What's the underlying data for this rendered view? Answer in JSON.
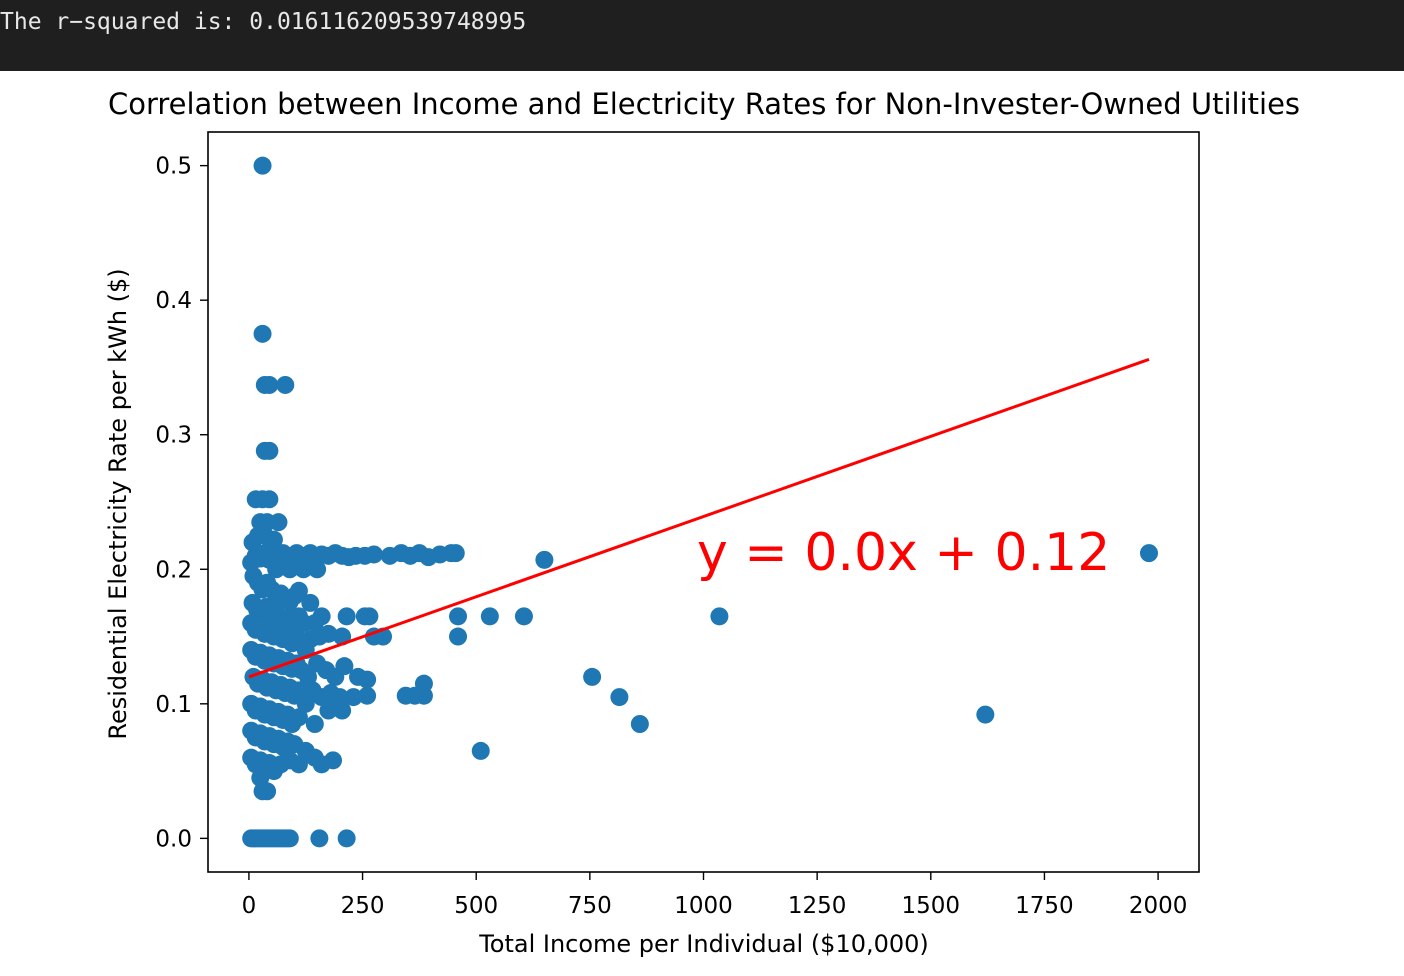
{
  "console": {
    "output": "The r−squared is: 0.016116209539748995"
  },
  "colors": {
    "points": "#1f77b4",
    "regression": "#ff0000",
    "console_bg": "#1f1f1f"
  },
  "chart_data": {
    "type": "scatter",
    "title": "Correlation between Income and Electricity Rates for Non-Invester-Owned Utilities",
    "xlabel": "Total Income per Individual ($10,000)",
    "ylabel": "Residential Electricity Rate per kWh ($)",
    "xlim": [
      -90,
      2090
    ],
    "ylim": [
      -0.025,
      0.525
    ],
    "xticks": [
      0,
      250,
      500,
      750,
      1000,
      1250,
      1500,
      1750,
      2000
    ],
    "yticks": [
      0.0,
      0.1,
      0.2,
      0.3,
      0.4,
      0.5
    ],
    "xtick_labels": [
      "0",
      "250",
      "500",
      "750",
      "1000",
      "1250",
      "1500",
      "1750",
      "2000"
    ],
    "ytick_labels": [
      "0.0",
      "0.1",
      "0.2",
      "0.3",
      "0.4",
      "0.5"
    ],
    "grid": false,
    "annotation": "y = 0.0x + 0.12",
    "regression_line": {
      "x": [
        0,
        1980
      ],
      "y": [
        0.12,
        0.356
      ]
    },
    "points": [
      [
        30,
        0.5
      ],
      [
        30,
        0.375
      ],
      [
        35,
        0.337
      ],
      [
        45,
        0.337
      ],
      [
        80,
        0.337
      ],
      [
        35,
        0.288
      ],
      [
        45,
        0.288
      ],
      [
        15,
        0.252
      ],
      [
        30,
        0.252
      ],
      [
        45,
        0.252
      ],
      [
        25,
        0.235
      ],
      [
        40,
        0.235
      ],
      [
        65,
        0.235
      ],
      [
        8,
        0.22
      ],
      [
        20,
        0.225
      ],
      [
        35,
        0.225
      ],
      [
        55,
        0.222
      ],
      [
        5,
        0.205
      ],
      [
        15,
        0.21
      ],
      [
        25,
        0.208
      ],
      [
        35,
        0.212
      ],
      [
        45,
        0.207
      ],
      [
        55,
        0.21
      ],
      [
        65,
        0.208
      ],
      [
        75,
        0.212
      ],
      [
        85,
        0.207
      ],
      [
        95,
        0.21
      ],
      [
        105,
        0.212
      ],
      [
        115,
        0.208
      ],
      [
        125,
        0.21
      ],
      [
        135,
        0.212
      ],
      [
        145,
        0.208
      ],
      [
        160,
        0.211
      ],
      [
        175,
        0.21
      ],
      [
        190,
        0.212
      ],
      [
        205,
        0.21
      ],
      [
        220,
        0.209
      ],
      [
        235,
        0.21
      ],
      [
        255,
        0.21
      ],
      [
        275,
        0.211
      ],
      [
        310,
        0.21
      ],
      [
        335,
        0.212
      ],
      [
        355,
        0.21
      ],
      [
        375,
        0.212
      ],
      [
        395,
        0.209
      ],
      [
        420,
        0.211
      ],
      [
        445,
        0.212
      ],
      [
        455,
        0.212
      ],
      [
        650,
        0.207
      ],
      [
        1980,
        0.212
      ],
      [
        60,
        0.2
      ],
      [
        90,
        0.2
      ],
      [
        120,
        0.2
      ],
      [
        150,
        0.2
      ],
      [
        10,
        0.195
      ],
      [
        20,
        0.19
      ],
      [
        30,
        0.185
      ],
      [
        40,
        0.19
      ],
      [
        50,
        0.185
      ],
      [
        60,
        0.18
      ],
      [
        70,
        0.182
      ],
      [
        80,
        0.178
      ],
      [
        90,
        0.176
      ],
      [
        100,
        0.18
      ],
      [
        110,
        0.184
      ],
      [
        8,
        0.175
      ],
      [
        18,
        0.17
      ],
      [
        28,
        0.168
      ],
      [
        38,
        0.172
      ],
      [
        48,
        0.166
      ],
      [
        58,
        0.17
      ],
      [
        68,
        0.165
      ],
      [
        78,
        0.16
      ],
      [
        88,
        0.164
      ],
      [
        98,
        0.162
      ],
      [
        110,
        0.165
      ],
      [
        120,
        0.16
      ],
      [
        135,
        0.175
      ],
      [
        5,
        0.16
      ],
      [
        15,
        0.155
      ],
      [
        25,
        0.158
      ],
      [
        35,
        0.152
      ],
      [
        45,
        0.156
      ],
      [
        55,
        0.15
      ],
      [
        65,
        0.154
      ],
      [
        75,
        0.148
      ],
      [
        85,
        0.152
      ],
      [
        95,
        0.145
      ],
      [
        105,
        0.15
      ],
      [
        115,
        0.146
      ],
      [
        125,
        0.14
      ],
      [
        135,
        0.148
      ],
      [
        160,
        0.165
      ],
      [
        215,
        0.165
      ],
      [
        255,
        0.165
      ],
      [
        265,
        0.165
      ],
      [
        460,
        0.165
      ],
      [
        530,
        0.165
      ],
      [
        605,
        0.165
      ],
      [
        1035,
        0.165
      ],
      [
        145,
        0.16
      ],
      [
        155,
        0.15
      ],
      [
        175,
        0.152
      ],
      [
        205,
        0.15
      ],
      [
        275,
        0.15
      ],
      [
        295,
        0.15
      ],
      [
        460,
        0.15
      ],
      [
        5,
        0.14
      ],
      [
        15,
        0.135
      ],
      [
        25,
        0.138
      ],
      [
        35,
        0.132
      ],
      [
        45,
        0.136
      ],
      [
        55,
        0.13
      ],
      [
        65,
        0.134
      ],
      [
        75,
        0.128
      ],
      [
        85,
        0.132
      ],
      [
        95,
        0.126
      ],
      [
        105,
        0.13
      ],
      [
        115,
        0.125
      ],
      [
        130,
        0.12
      ],
      [
        150,
        0.13
      ],
      [
        170,
        0.125
      ],
      [
        190,
        0.12
      ],
      [
        210,
        0.128
      ],
      [
        240,
        0.12
      ],
      [
        260,
        0.118
      ],
      [
        10,
        0.12
      ],
      [
        20,
        0.115
      ],
      [
        30,
        0.118
      ],
      [
        40,
        0.112
      ],
      [
        50,
        0.116
      ],
      [
        60,
        0.11
      ],
      [
        70,
        0.114
      ],
      [
        80,
        0.108
      ],
      [
        90,
        0.112
      ],
      [
        100,
        0.106
      ],
      [
        110,
        0.11
      ],
      [
        120,
        0.105
      ],
      [
        140,
        0.11
      ],
      [
        160,
        0.105
      ],
      [
        180,
        0.108
      ],
      [
        200,
        0.105
      ],
      [
        230,
        0.105
      ],
      [
        260,
        0.106
      ],
      [
        345,
        0.106
      ],
      [
        365,
        0.106
      ],
      [
        385,
        0.106
      ],
      [
        385,
        0.115
      ],
      [
        755,
        0.12
      ],
      [
        815,
        0.105
      ],
      [
        860,
        0.085
      ],
      [
        1620,
        0.092
      ],
      [
        5,
        0.1
      ],
      [
        15,
        0.095
      ],
      [
        25,
        0.098
      ],
      [
        35,
        0.092
      ],
      [
        45,
        0.096
      ],
      [
        55,
        0.09
      ],
      [
        65,
        0.094
      ],
      [
        75,
        0.088
      ],
      [
        85,
        0.092
      ],
      [
        95,
        0.085
      ],
      [
        110,
        0.09
      ],
      [
        125,
        0.1
      ],
      [
        145,
        0.085
      ],
      [
        175,
        0.095
      ],
      [
        195,
        0.1
      ],
      [
        205,
        0.095
      ],
      [
        5,
        0.08
      ],
      [
        15,
        0.075
      ],
      [
        25,
        0.078
      ],
      [
        35,
        0.072
      ],
      [
        45,
        0.076
      ],
      [
        55,
        0.07
      ],
      [
        65,
        0.074
      ],
      [
        75,
        0.068
      ],
      [
        85,
        0.072
      ],
      [
        100,
        0.07
      ],
      [
        5,
        0.06
      ],
      [
        15,
        0.055
      ],
      [
        25,
        0.058
      ],
      [
        35,
        0.052
      ],
      [
        45,
        0.056
      ],
      [
        55,
        0.05
      ],
      [
        70,
        0.055
      ],
      [
        90,
        0.058
      ],
      [
        110,
        0.055
      ],
      [
        125,
        0.065
      ],
      [
        145,
        0.06
      ],
      [
        160,
        0.055
      ],
      [
        185,
        0.058
      ],
      [
        510,
        0.065
      ],
      [
        25,
        0.045
      ],
      [
        30,
        0.035
      ],
      [
        40,
        0.035
      ],
      [
        5,
        0.0
      ],
      [
        10,
        0.0
      ],
      [
        15,
        0.0
      ],
      [
        20,
        0.0
      ],
      [
        25,
        0.0
      ],
      [
        30,
        0.0
      ],
      [
        35,
        0.0
      ],
      [
        40,
        0.0
      ],
      [
        45,
        0.0
      ],
      [
        50,
        0.0
      ],
      [
        55,
        0.0
      ],
      [
        60,
        0.0
      ],
      [
        65,
        0.0
      ],
      [
        70,
        0.0
      ],
      [
        75,
        0.0
      ],
      [
        80,
        0.0
      ],
      [
        85,
        0.0
      ],
      [
        90,
        0.0
      ],
      [
        155,
        0.0
      ],
      [
        215,
        0.0
      ]
    ]
  }
}
